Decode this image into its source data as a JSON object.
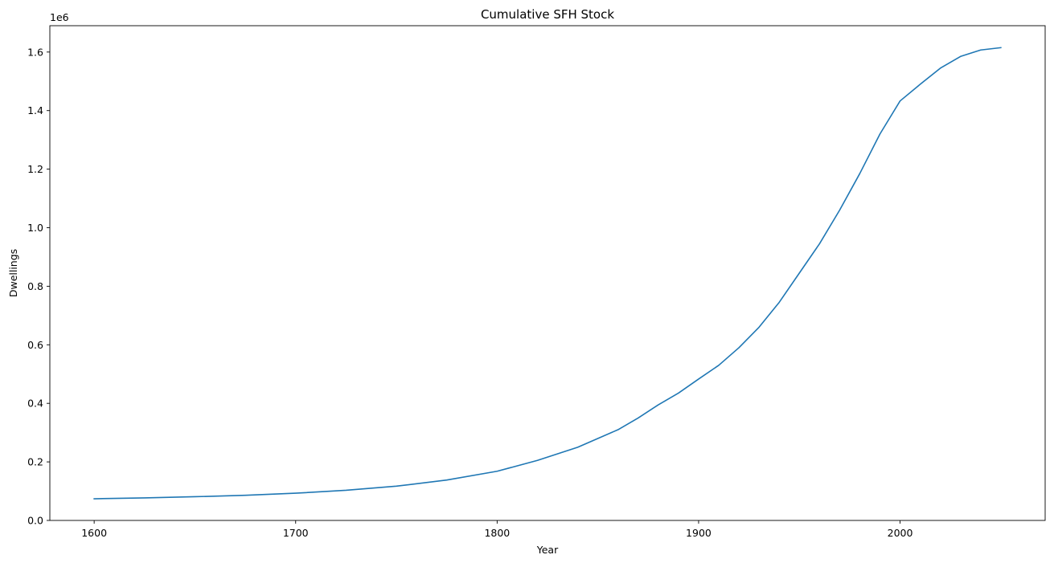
{
  "chart_data": {
    "type": "line",
    "title": "Cumulative SFH Stock",
    "xlabel": "Year",
    "ylabel": "Dwellings",
    "y_offset_label": "1e6",
    "xlim": [
      1578,
      2072
    ],
    "ylim": [
      0,
      1690000
    ],
    "x_ticks": [
      1600,
      1700,
      1800,
      1900,
      2000
    ],
    "x_tick_labels": [
      "1600",
      "1700",
      "1800",
      "1900",
      "2000"
    ],
    "y_ticks": [
      0,
      200000,
      400000,
      600000,
      800000,
      1000000,
      1200000,
      1400000,
      1600000
    ],
    "y_tick_labels": [
      "0.0",
      "0.2",
      "0.4",
      "0.6",
      "0.8",
      "1.0",
      "1.2",
      "1.4",
      "1.6"
    ],
    "grid": false,
    "colors": {
      "line": "#1f77b4"
    },
    "series": [
      {
        "x": [
          1600,
          1625,
          1650,
          1675,
          1700,
          1725,
          1750,
          1775,
          1800,
          1820,
          1840,
          1860,
          1870,
          1880,
          1890,
          1900,
          1910,
          1920,
          1930,
          1940,
          1950,
          1960,
          1970,
          1980,
          1990,
          2000,
          2010,
          2020,
          2030,
          2040,
          2050
        ],
        "y": [
          74000,
          77000,
          81000,
          86000,
          93000,
          103000,
          117000,
          138000,
          168000,
          205000,
          250000,
          310000,
          350000,
          395000,
          435000,
          483000,
          530000,
          590000,
          660000,
          745000,
          845000,
          945000,
          1060000,
          1185000,
          1320000,
          1433000,
          1490000,
          1545000,
          1585000,
          1607000,
          1615000
        ]
      }
    ]
  }
}
